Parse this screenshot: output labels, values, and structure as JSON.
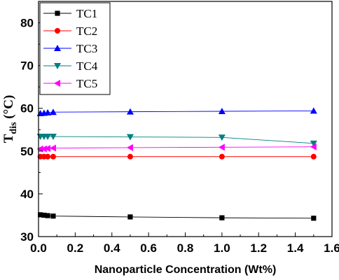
{
  "chart_data": {
    "type": "line",
    "title": "",
    "xlabel": "Nanoparticle Concentration (Wt%)",
    "ylabel": {
      "main": "T",
      "sub": "dis",
      "unit": " (°C)"
    },
    "xlim": [
      0,
      1.6
    ],
    "ylim": [
      30,
      85
    ],
    "xticks": [
      "0.0",
      "0.2",
      "0.4",
      "0.6",
      "0.8",
      "1.0",
      "1.2",
      "1.4",
      "1.6"
    ],
    "yticks": [
      "30",
      "40",
      "50",
      "60",
      "70",
      "80"
    ],
    "grid": false,
    "legend_position": "top-left",
    "x": [
      0.01,
      0.03,
      0.05,
      0.08,
      0.5,
      1.0,
      1.5
    ],
    "series": [
      {
        "name": "TC1",
        "color": "#000000",
        "marker": "square",
        "values": [
          35.1,
          35.0,
          34.9,
          34.8,
          34.6,
          34.4,
          34.3
        ]
      },
      {
        "name": "TC2",
        "color": "#ff0000",
        "marker": "circle",
        "values": [
          48.7,
          48.7,
          48.7,
          48.7,
          48.7,
          48.7,
          48.7
        ]
      },
      {
        "name": "TC3",
        "color": "#0000ff",
        "marker": "triangle-up",
        "values": [
          58.8,
          58.9,
          59.0,
          59.1,
          59.2,
          59.3,
          59.4
        ]
      },
      {
        "name": "TC4",
        "color": "#008080",
        "marker": "triangle-down",
        "values": [
          53.4,
          53.4,
          53.4,
          53.4,
          53.3,
          53.2,
          51.8
        ]
      },
      {
        "name": "TC5",
        "color": "#ff00ff",
        "marker": "triangle-left",
        "values": [
          50.5,
          50.5,
          50.6,
          50.7,
          50.8,
          50.9,
          51.0
        ]
      }
    ]
  }
}
